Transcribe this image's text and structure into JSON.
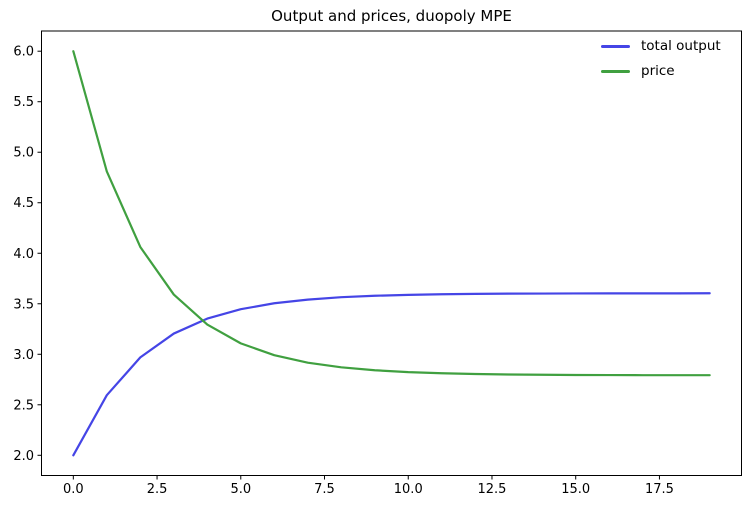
{
  "chart_data": {
    "type": "line",
    "title": "Output and prices, duopoly MPE",
    "x": [
      0,
      1,
      2,
      3,
      4,
      5,
      6,
      7,
      8,
      9,
      10,
      11,
      12,
      13,
      14,
      15,
      16,
      17,
      18,
      19
    ],
    "series": [
      {
        "name": "total output",
        "color": "#4545e6",
        "values": [
          2.0,
          2.595,
          2.969,
          3.205,
          3.353,
          3.446,
          3.505,
          3.541,
          3.565,
          3.579,
          3.588,
          3.594,
          3.598,
          3.6,
          3.601,
          3.602,
          3.603,
          3.603,
          3.603,
          3.604
        ]
      },
      {
        "name": "price",
        "color": "#40a040",
        "values": [
          6.0,
          4.81,
          4.062,
          3.591,
          3.294,
          3.108,
          2.991,
          2.917,
          2.871,
          2.842,
          2.823,
          2.812,
          2.805,
          2.8,
          2.797,
          2.795,
          2.794,
          2.793,
          2.793,
          2.793
        ]
      }
    ],
    "xlabel": "",
    "ylabel": "",
    "xlim": [
      -0.95,
      19.95
    ],
    "ylim": [
      1.8,
      6.2
    ],
    "xticks": [
      0,
      2.5,
      5,
      7.5,
      10,
      12.5,
      15,
      17.5
    ],
    "xtick_labels": [
      "0.0",
      "2.5",
      "5.0",
      "7.5",
      "10.0",
      "12.5",
      "15.0",
      "17.5"
    ],
    "yticks": [
      2.0,
      2.5,
      3.0,
      3.5,
      4.0,
      4.5,
      5.0,
      5.5,
      6.0
    ],
    "ytick_labels": [
      "2.0",
      "2.5",
      "3.0",
      "3.5",
      "4.0",
      "4.5",
      "5.0",
      "5.5",
      "6.0"
    ],
    "grid": false,
    "legend_position": "upper right",
    "background_color": "#ffffff",
    "spine_color": "#000000",
    "line_width": 2.2
  }
}
